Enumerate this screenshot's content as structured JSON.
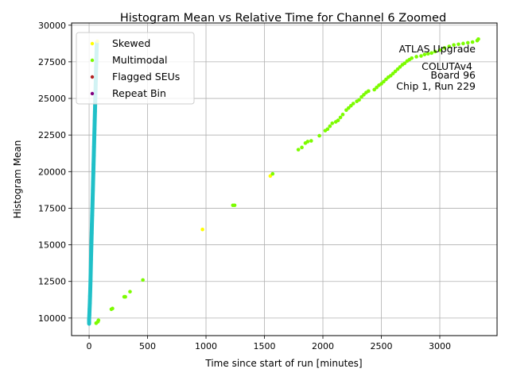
{
  "chart_data": {
    "type": "scatter",
    "title": "Histogram Mean vs Relative Time for Channel 6 Zoomed",
    "xlabel": "Time since start of run [minutes]",
    "ylabel": "Histogram Mean",
    "xlim": [
      -150,
      3490
    ],
    "ylim": [
      8800,
      30150
    ],
    "xticks": [
      0,
      500,
      1000,
      1500,
      2000,
      2500,
      3000
    ],
    "xtick_labels": [
      "0",
      "500",
      "1000",
      "1500",
      "2000",
      "2500",
      "3000"
    ],
    "yticks": [
      10000,
      12500,
      15000,
      17500,
      20000,
      22500,
      25000,
      27500,
      30000
    ],
    "ytick_labels": [
      "10000",
      "12500",
      "15000",
      "17500",
      "20000",
      "22500",
      "25000",
      "27500",
      "30000"
    ],
    "grid": true,
    "legend_position": "top-left",
    "annotation": [
      "ATLAS Upgrade",
      "COLUTAv4",
      "Board 96",
      "Chip 1, Run 229"
    ],
    "series": [
      {
        "name": "Skewed",
        "color": "#ffff00",
        "points": [
          [
            970,
            16050
          ],
          [
            1550,
            19700
          ],
          [
            70,
            28900
          ]
        ]
      },
      {
        "name": "Multimodal",
        "color": "#7cfc00",
        "points": [
          [
            60,
            9650
          ],
          [
            75,
            9750
          ],
          [
            80,
            9850
          ],
          [
            190,
            10600
          ],
          [
            200,
            10650
          ],
          [
            300,
            11450
          ],
          [
            310,
            11450
          ],
          [
            350,
            11800
          ],
          [
            460,
            12600
          ],
          [
            1230,
            17700
          ],
          [
            1245,
            17700
          ],
          [
            1570,
            19850
          ],
          [
            1790,
            21500
          ],
          [
            1820,
            21650
          ],
          [
            1850,
            21950
          ],
          [
            1870,
            22050
          ],
          [
            1900,
            22100
          ],
          [
            1970,
            22450
          ],
          [
            2020,
            22800
          ],
          [
            2040,
            22900
          ],
          [
            2060,
            23100
          ],
          [
            2080,
            23300
          ],
          [
            2110,
            23400
          ],
          [
            2130,
            23500
          ],
          [
            2150,
            23700
          ],
          [
            2170,
            23900
          ],
          [
            2200,
            24200
          ],
          [
            2220,
            24350
          ],
          [
            2240,
            24500
          ],
          [
            2260,
            24650
          ],
          [
            2290,
            24800
          ],
          [
            2310,
            24900
          ],
          [
            2330,
            25100
          ],
          [
            2350,
            25250
          ],
          [
            2370,
            25400
          ],
          [
            2390,
            25500
          ],
          [
            2440,
            25600
          ],
          [
            2460,
            25750
          ],
          [
            2480,
            25900
          ],
          [
            2500,
            26000
          ],
          [
            2520,
            26150
          ],
          [
            2540,
            26300
          ],
          [
            2560,
            26450
          ],
          [
            2580,
            26550
          ],
          [
            2600,
            26700
          ],
          [
            2620,
            26850
          ],
          [
            2640,
            27000
          ],
          [
            2660,
            27150
          ],
          [
            2680,
            27300
          ],
          [
            2700,
            27400
          ],
          [
            2720,
            27550
          ],
          [
            2740,
            27650
          ],
          [
            2760,
            27750
          ],
          [
            2800,
            27850
          ],
          [
            2840,
            27900
          ],
          [
            2870,
            28000
          ],
          [
            2900,
            28050
          ],
          [
            2930,
            28100
          ],
          [
            2960,
            28200
          ],
          [
            3000,
            28300
          ],
          [
            3040,
            28450
          ],
          [
            3080,
            28550
          ],
          [
            3120,
            28650
          ],
          [
            3160,
            28700
          ],
          [
            3200,
            28750
          ],
          [
            3240,
            28800
          ],
          [
            3280,
            28850
          ],
          [
            3320,
            28950
          ],
          [
            3330,
            29050
          ]
        ]
      },
      {
        "name": "Flagged SEUs",
        "color": "#b22222",
        "points": []
      },
      {
        "name": "Repeat Bin",
        "color": "#800080",
        "points": []
      }
    ],
    "dense_run": {
      "color": "#20c0c8",
      "points": [
        [
          0,
          9600
        ],
        [
          0,
          9900
        ],
        [
          2,
          10200
        ],
        [
          4,
          10600
        ],
        [
          6,
          11000
        ],
        [
          8,
          11500
        ],
        [
          10,
          12000
        ],
        [
          12,
          12600
        ],
        [
          14,
          13300
        ],
        [
          16,
          14000
        ],
        [
          18,
          14600
        ],
        [
          20,
          15200
        ],
        [
          22,
          15800
        ],
        [
          24,
          16400
        ],
        [
          26,
          17000
        ],
        [
          28,
          17500
        ],
        [
          30,
          18100
        ],
        [
          32,
          18700
        ],
        [
          34,
          19300
        ],
        [
          36,
          19900
        ],
        [
          38,
          20500
        ],
        [
          40,
          21100
        ],
        [
          42,
          21700
        ],
        [
          44,
          22300
        ],
        [
          46,
          22900
        ],
        [
          48,
          23500
        ],
        [
          50,
          24100
        ],
        [
          52,
          24700
        ],
        [
          54,
          25300
        ],
        [
          56,
          25900
        ],
        [
          58,
          26500
        ],
        [
          60,
          27100
        ],
        [
          62,
          27700
        ],
        [
          64,
          28300
        ],
        [
          66,
          28800
        ]
      ]
    }
  }
}
